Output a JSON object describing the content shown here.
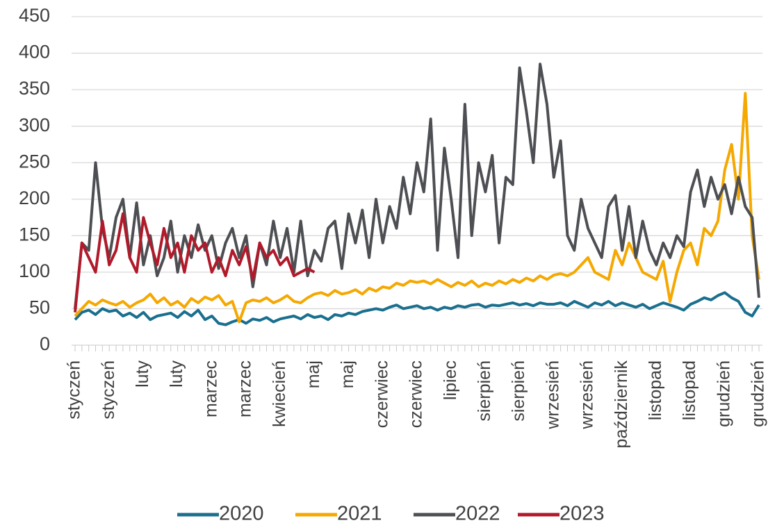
{
  "chart_data": {
    "type": "line",
    "categories": [
      "styczeń",
      null,
      null,
      null,
      null,
      "styczeń",
      null,
      null,
      null,
      null,
      "luty",
      null,
      null,
      null,
      null,
      "luty",
      null,
      null,
      null,
      null,
      "marzec",
      null,
      null,
      null,
      null,
      "marzec",
      null,
      null,
      null,
      null,
      "kwiecień",
      null,
      null,
      null,
      null,
      "maj",
      null,
      null,
      null,
      null,
      "maj",
      null,
      null,
      null,
      null,
      "czerwiec",
      null,
      null,
      null,
      null,
      "czerwiec",
      null,
      null,
      null,
      null,
      "lipiec",
      null,
      null,
      null,
      null,
      "sierpień",
      null,
      null,
      null,
      null,
      "sierpień",
      null,
      null,
      null,
      null,
      "wrzesień",
      null,
      null,
      null,
      null,
      "wrzesień",
      null,
      null,
      null,
      null,
      "październik",
      null,
      null,
      null,
      null,
      "listopad",
      null,
      null,
      null,
      null,
      "listopad",
      null,
      null,
      null,
      null,
      "grudzień",
      null,
      null,
      null,
      null,
      "grudzień"
    ],
    "series": [
      {
        "name": "2020",
        "color": "#1a6f8e",
        "values": [
          35,
          45,
          48,
          42,
          50,
          46,
          48,
          40,
          44,
          38,
          45,
          35,
          40,
          42,
          44,
          38,
          46,
          40,
          48,
          35,
          40,
          30,
          28,
          32,
          35,
          30,
          36,
          34,
          38,
          32,
          36,
          38,
          40,
          36,
          42,
          38,
          40,
          35,
          42,
          40,
          44,
          42,
          46,
          48,
          50,
          48,
          52,
          55,
          50,
          52,
          54,
          50,
          52,
          48,
          52,
          50,
          54,
          52,
          55,
          56,
          52,
          55,
          54,
          56,
          58,
          55,
          57,
          54,
          58,
          56,
          56,
          58,
          54,
          60,
          56,
          52,
          58,
          55,
          60,
          54,
          58,
          55,
          52,
          56,
          50,
          54,
          58,
          55,
          52,
          48,
          56,
          60,
          65,
          62,
          68,
          72,
          65,
          60,
          45,
          40,
          55
        ]
      },
      {
        "name": "2021",
        "color": "#f5a800",
        "values": [
          40,
          50,
          60,
          55,
          62,
          58,
          55,
          60,
          52,
          58,
          62,
          70,
          58,
          65,
          55,
          60,
          52,
          64,
          58,
          66,
          62,
          68,
          55,
          60,
          32,
          58,
          62,
          60,
          65,
          58,
          62,
          68,
          60,
          58,
          65,
          70,
          72,
          68,
          75,
          70,
          72,
          76,
          70,
          78,
          74,
          80,
          78,
          85,
          82,
          88,
          86,
          88,
          84,
          90,
          85,
          80,
          86,
          82,
          88,
          80,
          85,
          82,
          88,
          84,
          90,
          86,
          92,
          88,
          95,
          90,
          96,
          98,
          95,
          100,
          110,
          120,
          100,
          95,
          90,
          130,
          110,
          140,
          120,
          100,
          95,
          90,
          115,
          60,
          100,
          130,
          140,
          110,
          160,
          150,
          170,
          240,
          275,
          200,
          345,
          150,
          90
        ]
      },
      {
        "name": "2022",
        "color": "#4d4f53",
        "values": [
          50,
          140,
          130,
          250,
          160,
          120,
          175,
          200,
          120,
          195,
          110,
          150,
          95,
          120,
          170,
          100,
          150,
          120,
          165,
          130,
          150,
          105,
          140,
          160,
          120,
          150,
          80,
          140,
          110,
          170,
          120,
          160,
          100,
          170,
          95,
          130,
          115,
          160,
          170,
          105,
          180,
          140,
          185,
          120,
          200,
          140,
          190,
          160,
          230,
          180,
          250,
          210,
          310,
          130,
          270,
          200,
          120,
          330,
          150,
          250,
          210,
          260,
          140,
          230,
          220,
          380,
          320,
          250,
          385,
          330,
          230,
          280,
          150,
          130,
          200,
          160,
          140,
          120,
          190,
          205,
          130,
          190,
          120,
          170,
          130,
          110,
          140,
          120,
          150,
          135,
          210,
          240,
          190,
          230,
          200,
          220,
          180,
          230,
          190,
          175,
          65
        ]
      },
      {
        "name": "2023",
        "color": "#b11a2a",
        "values": [
          45,
          140,
          120,
          100,
          170,
          110,
          130,
          180,
          120,
          100,
          175,
          140,
          110,
          160,
          120,
          140,
          100,
          150,
          130,
          140,
          100,
          120,
          95,
          130,
          110,
          135,
          90,
          140,
          120,
          130,
          110,
          120,
          95,
          100,
          105,
          100,
          null,
          null,
          null,
          null,
          null,
          null,
          null,
          null,
          null,
          null,
          null,
          null,
          null,
          null,
          null,
          null,
          null,
          null,
          null,
          null,
          null,
          null,
          null,
          null,
          null,
          null,
          null,
          null,
          null,
          null,
          null,
          null,
          null,
          null,
          null,
          null,
          null,
          null,
          null,
          null,
          null,
          null,
          null,
          null,
          null,
          null,
          null,
          null,
          null,
          null,
          null,
          null,
          null,
          null,
          null,
          null,
          null,
          null,
          null,
          null,
          null,
          null,
          null,
          null,
          null
        ]
      }
    ],
    "ylim": [
      0,
      450
    ],
    "yticks": [
      0,
      50,
      100,
      150,
      200,
      250,
      300,
      350,
      400,
      450
    ],
    "grid": true,
    "legend": "bottom"
  }
}
